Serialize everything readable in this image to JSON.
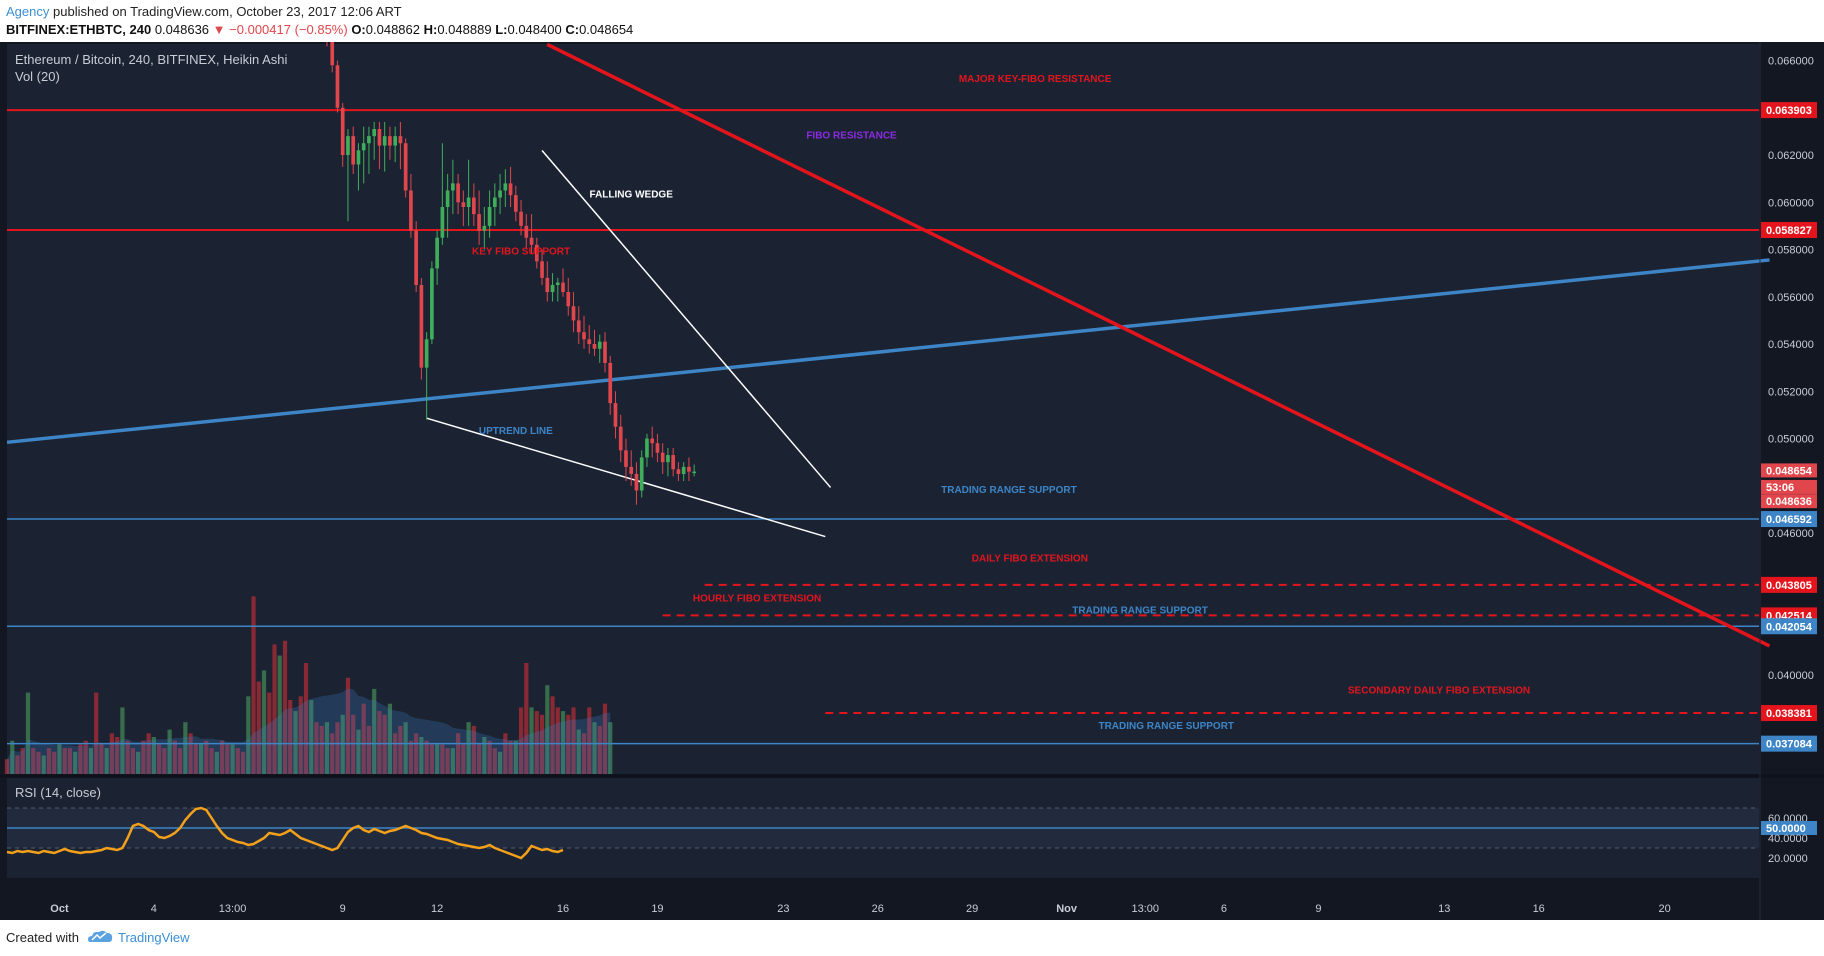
{
  "header": {
    "author": "Agency",
    "published": "published on TradingView.com, October 23, 2017 12:06 ART",
    "symbol": "BITFINEX:ETHBTC, 240",
    "last": "0.048636",
    "change": "▼ −0.000417 (−0.85%)",
    "o_label": "O:",
    "o_value": "0.048862",
    "h_label": "H:",
    "h_value": "0.048889",
    "l_label": "L:",
    "l_value": "0.048400",
    "c_label": "C:",
    "c_value": "0.048654"
  },
  "legend": {
    "title": "Ethereum / Bitcoin, 240, BITFINEX, Heikin Ashi",
    "vol": "Vol (20)",
    "rsi": "RSI (14, close)"
  },
  "colors": {
    "background": "#1b2333",
    "up": "#3fae5a",
    "down": "#e0464b",
    "resistance": "#e3141c",
    "uptrend": "#3d85c6",
    "wedge": "#ffffff",
    "rsi": "#f4a01a"
  },
  "footer": {
    "created": "Created with",
    "brand": "TradingView"
  },
  "chart_data": {
    "type": "candlestick",
    "chart_style": "Heikin Ashi",
    "y_scale_ticks": [
      0.066,
      0.062,
      0.06,
      0.058,
      0.056,
      0.054,
      0.052,
      0.05,
      0.046,
      0.04
    ],
    "y_tick_labels": [
      "0.066000",
      "0.062000",
      "0.060000",
      "0.058000",
      "0.056000",
      "0.054000",
      "0.052000",
      "0.050000",
      "0.046000",
      "0.040000"
    ],
    "ylim": [
      0.0358,
      0.0667
    ],
    "x_tick_labels": [
      {
        "label": "Oct",
        "bar": 0
      },
      {
        "label": "4",
        "bar": 18
      },
      {
        "label": "13:00",
        "bar": 33
      },
      {
        "label": "9",
        "bar": 54
      },
      {
        "label": "12",
        "bar": 72
      },
      {
        "label": "16",
        "bar": 96
      },
      {
        "label": "19",
        "bar": 114
      },
      {
        "label": "23",
        "bar": 138
      },
      {
        "label": "26",
        "bar": 156
      },
      {
        "label": "29",
        "bar": 174
      },
      {
        "label": "Nov",
        "bar": 192
      },
      {
        "label": "13:00",
        "bar": 207
      },
      {
        "label": "6",
        "bar": 222
      },
      {
        "label": "9",
        "bar": 240
      },
      {
        "label": "13",
        "bar": 264
      },
      {
        "label": "16",
        "bar": 282
      },
      {
        "label": "20",
        "bar": 306
      }
    ],
    "x_bar_range": [
      -10,
      324
    ],
    "ohlc": [
      [
        0.0672,
        0.0675,
        0.0666,
        0.0668
      ],
      [
        0.0668,
        0.0672,
        0.0655,
        0.0658
      ],
      [
        0.0658,
        0.066,
        0.0638,
        0.064
      ],
      [
        0.064,
        0.0642,
        0.0615,
        0.062
      ],
      [
        0.062,
        0.0631,
        0.0592,
        0.0628
      ],
      [
        0.0628,
        0.0632,
        0.0612,
        0.0616
      ],
      [
        0.0616,
        0.0625,
        0.0605,
        0.0622
      ],
      [
        0.0622,
        0.0632,
        0.0608,
        0.0625
      ],
      [
        0.0625,
        0.0632,
        0.0612,
        0.0628
      ],
      [
        0.0628,
        0.0634,
        0.0618,
        0.0631
      ],
      [
        0.0631,
        0.0634,
        0.0614,
        0.0624
      ],
      [
        0.0624,
        0.0634,
        0.0613,
        0.0628
      ],
      [
        0.0628,
        0.0632,
        0.0618,
        0.0624
      ],
      [
        0.0624,
        0.0632,
        0.0617,
        0.0628
      ],
      [
        0.0628,
        0.0634,
        0.0614,
        0.0625
      ],
      [
        0.0625,
        0.0627,
        0.0602,
        0.0605
      ],
      [
        0.0605,
        0.0612,
        0.0585,
        0.0588
      ],
      [
        0.0588,
        0.0592,
        0.0562,
        0.0565
      ],
      [
        0.0565,
        0.0568,
        0.0525,
        0.053
      ],
      [
        0.053,
        0.0545,
        0.0508,
        0.0542
      ],
      [
        0.0542,
        0.0575,
        0.054,
        0.0572
      ],
      [
        0.0572,
        0.0588,
        0.0565,
        0.0585
      ],
      [
        0.0585,
        0.0625,
        0.0582,
        0.0598
      ],
      [
        0.0598,
        0.0612,
        0.0585,
        0.0605
      ],
      [
        0.0605,
        0.0618,
        0.0595,
        0.0608
      ],
      [
        0.0608,
        0.0612,
        0.0595,
        0.06
      ],
      [
        0.06,
        0.0605,
        0.059,
        0.0598
      ],
      [
        0.0598,
        0.0618,
        0.059,
        0.0602
      ],
      [
        0.0602,
        0.0608,
        0.059,
        0.0595
      ],
      [
        0.0595,
        0.0605,
        0.0582,
        0.0588
      ],
      [
        0.0588,
        0.0598,
        0.058,
        0.059
      ],
      [
        0.059,
        0.0605,
        0.0585,
        0.0598
      ],
      [
        0.0598,
        0.0608,
        0.059,
        0.0602
      ],
      [
        0.0602,
        0.0612,
        0.0595,
        0.0605
      ],
      [
        0.0605,
        0.0614,
        0.0598,
        0.0608
      ],
      [
        0.0608,
        0.0615,
        0.0598,
        0.0603
      ],
      [
        0.0603,
        0.0607,
        0.0592,
        0.0596
      ],
      [
        0.0596,
        0.0601,
        0.0586,
        0.059
      ],
      [
        0.059,
        0.0595,
        0.058,
        0.0585
      ],
      [
        0.0585,
        0.0595,
        0.0578,
        0.0582
      ],
      [
        0.0582,
        0.0585,
        0.0572,
        0.0575
      ],
      [
        0.0575,
        0.058,
        0.0565,
        0.0568
      ],
      [
        0.0568,
        0.0575,
        0.0558,
        0.0562
      ],
      [
        0.0562,
        0.057,
        0.0558,
        0.0565
      ],
      [
        0.0565,
        0.0568,
        0.0558,
        0.0566
      ],
      [
        0.0566,
        0.0572,
        0.056,
        0.0562
      ],
      [
        0.0562,
        0.0568,
        0.0552,
        0.0556
      ],
      [
        0.0556,
        0.0562,
        0.0545,
        0.055
      ],
      [
        0.055,
        0.0556,
        0.054,
        0.0545
      ],
      [
        0.0545,
        0.0552,
        0.0538,
        0.0542
      ],
      [
        0.0542,
        0.0548,
        0.0536,
        0.054
      ],
      [
        0.054,
        0.0546,
        0.0535,
        0.0538
      ],
      [
        0.0538,
        0.0544,
        0.0532,
        0.0541
      ],
      [
        0.0541,
        0.0545,
        0.0528,
        0.0532
      ],
      [
        0.0532,
        0.0535,
        0.051,
        0.0515
      ],
      [
        0.0515,
        0.052,
        0.05,
        0.0505
      ],
      [
        0.0505,
        0.051,
        0.049,
        0.0495
      ],
      [
        0.0495,
        0.05,
        0.0482,
        0.0488
      ],
      [
        0.0488,
        0.0495,
        0.048,
        0.0485
      ],
      [
        0.0485,
        0.049,
        0.0472,
        0.0478
      ],
      [
        0.0478,
        0.0495,
        0.0475,
        0.0492
      ],
      [
        0.0492,
        0.0502,
        0.0488,
        0.05
      ],
      [
        0.05,
        0.0505,
        0.0492,
        0.0498
      ],
      [
        0.0498,
        0.0502,
        0.049,
        0.0494
      ],
      [
        0.0494,
        0.0498,
        0.0485,
        0.049
      ],
      [
        0.049,
        0.0496,
        0.0484,
        0.0493
      ],
      [
        0.0493,
        0.0496,
        0.0484,
        0.0487
      ],
      [
        0.0487,
        0.049,
        0.0482,
        0.0485
      ],
      [
        0.0485,
        0.049,
        0.0482,
        0.0488
      ],
      [
        0.0488,
        0.0492,
        0.0482,
        0.0486
      ],
      [
        0.0486,
        0.0489,
        0.0484,
        0.0486
      ]
    ],
    "start_bar": 51,
    "volume": [
      4,
      9,
      5,
      7,
      22,
      7,
      6,
      5,
      7,
      6,
      8,
      7,
      7,
      6,
      8,
      9,
      7,
      22,
      8,
      7,
      11,
      10,
      18,
      9,
      7,
      6,
      9,
      11,
      10,
      8,
      7,
      12,
      9,
      7,
      14,
      11,
      8,
      8,
      9,
      7,
      6,
      9,
      8,
      8,
      7,
      6,
      21,
      48,
      25,
      28,
      22,
      35,
      32,
      36,
      20,
      17,
      21,
      30,
      20,
      14,
      13,
      14,
      11,
      14,
      16,
      26,
      16,
      12,
      19,
      13,
      23,
      17,
      16,
      19,
      11,
      13,
      14,
      9,
      11,
      10,
      9,
      8,
      8,
      8,
      7,
      7,
      11,
      8,
      14,
      13,
      8,
      10,
      9,
      7,
      6,
      11,
      9,
      9,
      18,
      30,
      18,
      17,
      16,
      24,
      21,
      18,
      17,
      16,
      18,
      12,
      11,
      18,
      14,
      13,
      19,
      14
    ],
    "volume_start_bar": -10,
    "rsi": [
      26,
      25,
      27,
      26,
      27,
      26,
      25,
      27,
      26,
      25,
      27,
      29,
      27,
      26,
      25,
      26,
      26,
      27,
      28,
      30,
      29,
      28,
      30,
      40,
      52,
      54,
      52,
      48,
      46,
      41,
      40,
      42,
      45,
      50,
      58,
      64,
      69,
      70,
      68,
      60,
      52,
      45,
      40,
      38,
      36,
      35,
      33,
      34,
      37,
      40,
      45,
      44,
      43,
      45,
      48,
      44,
      40,
      38,
      36,
      34,
      32,
      30,
      28,
      30,
      38,
      46,
      50,
      52,
      48,
      46,
      49,
      47,
      45,
      47,
      48,
      50,
      52,
      50,
      48,
      45,
      44,
      42,
      40,
      39,
      38,
      36,
      34,
      33,
      32,
      31,
      30,
      31,
      33,
      30,
      28,
      26,
      24,
      22,
      20,
      25,
      32,
      30,
      28,
      29,
      27,
      26,
      28
    ],
    "rsi_start_bar": -10,
    "rsi_ticks": [
      60,
      50,
      40,
      20
    ],
    "rsi_tick_labels": [
      "60.0000",
      "50.0000",
      "40.0000",
      "20.0000"
    ],
    "rsi_range": [
      0,
      100
    ],
    "horizontal_levels": [
      {
        "price": 0.063903,
        "label": "0.063903",
        "color": "#e3141c",
        "style": "solid"
      },
      {
        "price": 0.058827,
        "label": "0.058827",
        "color": "#e3141c",
        "style": "solid"
      },
      {
        "price": 0.046592,
        "label": "0.046592",
        "color": "#3d85c6",
        "style": "solid"
      },
      {
        "price": 0.043805,
        "label": "0.043805",
        "color": "#e3141c",
        "style": "dashed"
      },
      {
        "price": 0.042514,
        "label": "0.042514",
        "color": "#e3141c",
        "style": "dashed"
      },
      {
        "price": 0.042054,
        "label": "0.042054",
        "color": "#3d85c6",
        "style": "solid"
      },
      {
        "price": 0.038381,
        "label": "0.038381",
        "color": "#e3141c",
        "style": "dashed"
      },
      {
        "price": 0.037084,
        "label": "0.037084",
        "color": "#3d85c6",
        "style": "solid"
      }
    ],
    "price_markers": [
      {
        "label": "0.048654",
        "price": 0.04865
      },
      {
        "label": "53:06",
        "price": 0.04795
      },
      {
        "label": "0.048636",
        "price": 0.04735
      }
    ],
    "trendlines": [
      {
        "name": "uptrend-line",
        "color": "#3d85c6",
        "from": [
          -10,
          0.04984
        ],
        "to": [
          326,
          0.05756
        ]
      },
      {
        "name": "major-downtrend-line",
        "color": "#e3141c",
        "from": [
          93,
          0.06668
        ],
        "to": [
          326,
          0.04122
        ]
      },
      {
        "name": "wedge-upper",
        "color": "#ffffff",
        "from": [
          92,
          0.06219
        ],
        "to": [
          147,
          0.04793
        ]
      },
      {
        "name": "wedge-lower",
        "color": "#ffffff",
        "from": [
          70,
          0.05086
        ],
        "to": [
          146,
          0.04585
        ]
      }
    ],
    "annotations": [
      {
        "text": "MAJOR KEY-FIBO RESISTANCE",
        "bar": 186,
        "price": 0.0651,
        "color": "#e3141c"
      },
      {
        "text": "FIBO RESISTANCE",
        "bar": 151,
        "price": 0.0627,
        "color": "#8b2be2"
      },
      {
        "text": "FALLING WEDGE",
        "bar": 109,
        "price": 0.0602,
        "color": "#ffffff"
      },
      {
        "text": "KEY FIBO SUPPORT",
        "bar": 88,
        "price": 0.0578,
        "color": "#e3141c"
      },
      {
        "text": "UPTREND LINE",
        "bar": 87,
        "price": 0.0502,
        "color": "#3d85c6"
      },
      {
        "text": "TRADING RANGE SUPPORT",
        "bar": 181,
        "price": 0.0477,
        "color": "#3d85c6"
      },
      {
        "text": "DAILY FIBO EXTENSION",
        "bar": 185,
        "price": 0.0448,
        "color": "#e3141c"
      },
      {
        "text": "HOURLY FIBO EXTENSION",
        "bar": 133,
        "price": 0.0431,
        "color": "#e3141c"
      },
      {
        "text": "TRADING RANGE SUPPORT",
        "bar": 206,
        "price": 0.0426,
        "color": "#3d85c6"
      },
      {
        "text": "SECONDARY DAILY FIBO EXTENSION",
        "bar": 263,
        "price": 0.0392,
        "color": "#e3141c"
      },
      {
        "text": "TRADING RANGE SUPPORT",
        "bar": 211,
        "price": 0.0377,
        "color": "#3d85c6"
      }
    ]
  }
}
